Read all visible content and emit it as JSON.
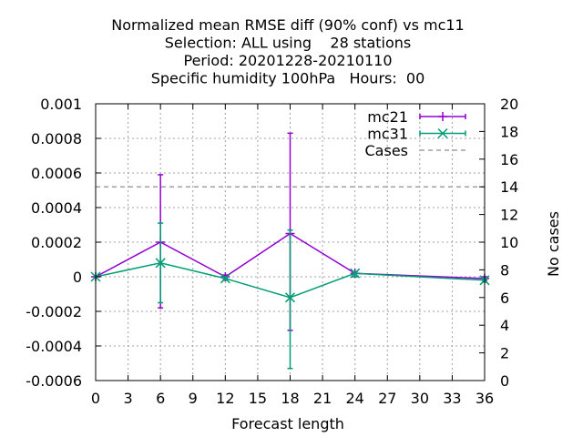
{
  "chart_data": {
    "type": "line",
    "title_lines": [
      "Normalized mean RMSE diff (90% conf) vs mc11",
      "Selection: ALL using    28 stations",
      "Period: 20201228-20210110",
      "Specific humidity 100hPa   Hours:  00"
    ],
    "xlabel": "Forecast length",
    "ylabel_right": "No cases",
    "xlim": [
      0,
      36
    ],
    "ylim": [
      -0.0006,
      0.001
    ],
    "y2lim": [
      0,
      20
    ],
    "xticks": [
      0,
      3,
      6,
      9,
      12,
      15,
      18,
      21,
      24,
      27,
      30,
      33,
      36
    ],
    "yticks": [
      -0.0006,
      -0.0004,
      -0.0002,
      0,
      0.0002,
      0.0004,
      0.0006,
      0.0008,
      0.001
    ],
    "ytick_labels": [
      "-0.0006",
      "-0.0004",
      "-0.0002",
      "0",
      "0.0002",
      "0.0004",
      "0.0006",
      "0.0008",
      "0.001"
    ],
    "y2ticks": [
      0,
      2,
      4,
      6,
      8,
      10,
      12,
      14,
      16,
      18,
      20
    ],
    "y2tick_labels": [
      "0",
      "2",
      "4",
      "6",
      "8",
      "10",
      "12",
      "14",
      "16",
      "18",
      "20"
    ],
    "grid": true,
    "legend_position": "top-right",
    "x": [
      0,
      6,
      12,
      18,
      24,
      36
    ],
    "series": [
      {
        "name": "mc21",
        "color": "#9400d3",
        "marker": "plus",
        "values": [
          0.0,
          0.0002,
          0.0,
          0.00025,
          2e-05,
          -1e-05
        ],
        "err_low": [
          0.0,
          -0.00018,
          -1e-05,
          -0.00031,
          0.0,
          -2e-05
        ],
        "err_high": [
          0.0,
          0.00059,
          1e-05,
          0.00083,
          3e-05,
          0.0
        ]
      },
      {
        "name": "mc31",
        "color": "#009e73",
        "marker": "cross",
        "values": [
          0.0,
          8e-05,
          -1e-05,
          -0.00012,
          2e-05,
          -2e-05
        ],
        "err_low": [
          0.0,
          -0.00015,
          -2e-05,
          -0.00053,
          0.0,
          -3e-05
        ],
        "err_high": [
          0.0,
          0.00031,
          0.0,
          0.00027,
          3e-05,
          -1e-05
        ]
      }
    ],
    "cases": {
      "name": "Cases",
      "color": "#a0a0a0",
      "value": 14
    }
  }
}
